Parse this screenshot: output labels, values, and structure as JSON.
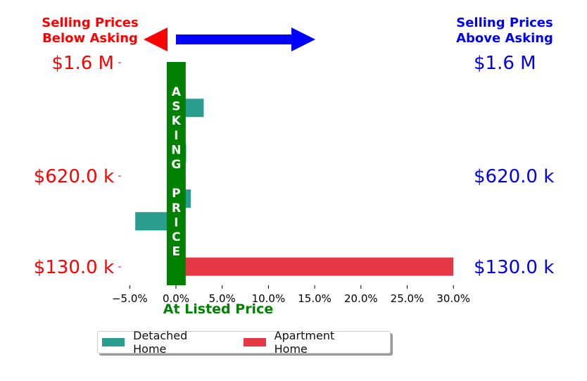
{
  "colors": {
    "detached": "#2a9d8f",
    "apartment": "#e63946",
    "below": "#ff0000",
    "above": "#0000ee",
    "asking": "#008000",
    "arrow_right": "#0000ff"
  },
  "header": {
    "below_label_line1": "Selling Prices",
    "below_label_line2": "Below Asking",
    "above_label_line1": "Selling Prices",
    "above_label_line2": "Above Asking"
  },
  "asking_band": {
    "letters": [
      "A",
      "S",
      "K",
      "I",
      "N",
      "G",
      "",
      "P",
      "R",
      "I",
      "C",
      "E"
    ]
  },
  "chart_data": {
    "type": "bar",
    "orientation": "horizontal",
    "xlabel": "At Listed Price",
    "xlim": [
      -0.06,
      0.305
    ],
    "x_ticks": [
      -0.05,
      0.0,
      0.05,
      0.1,
      0.15,
      0.2,
      0.25,
      0.3
    ],
    "x_tick_labels": [
      "−5.0%",
      "0.0%",
      "5.0%",
      "10.0%",
      "15.0%",
      "20.0%",
      "25.0%",
      "30.0%"
    ],
    "left_y_tick_labels": [
      "$1.6 M",
      "$620.0 k",
      "$130.0 k"
    ],
    "right_y_tick_labels": [
      "$1.6 M",
      "$620.0 k",
      "$130.0 k"
    ],
    "y_tick_slots": [
      0,
      5,
      9
    ],
    "n_slots": 10,
    "series": [
      {
        "name": "Detached Home",
        "values": [
          0.002,
          0.03,
          0.002,
          0.011,
          0.001,
          0.016,
          -0.044,
          0.001,
          null,
          null
        ]
      },
      {
        "name": "Apartment Home",
        "values": [
          null,
          null,
          null,
          null,
          null,
          null,
          null,
          0.002,
          0.3,
          null
        ]
      }
    ],
    "legend_position": "bottom-center",
    "grid": false
  }
}
